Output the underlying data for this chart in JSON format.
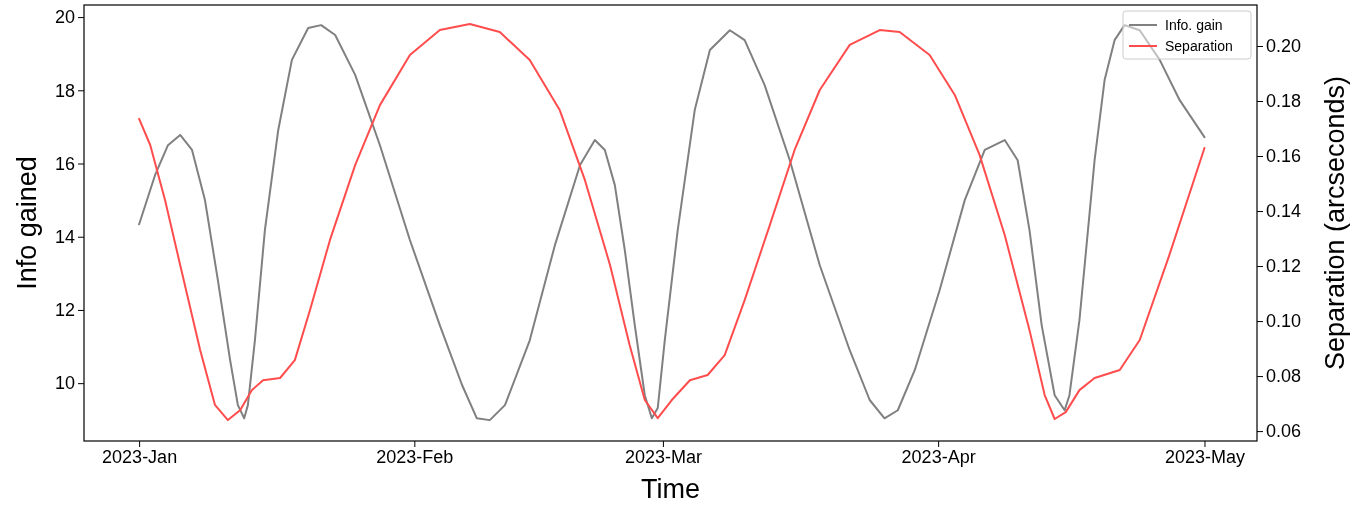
{
  "chart_data": {
    "type": "line",
    "xlabel": "Time",
    "ylabel": "Info gained",
    "y2label": "Separation (arcseconds)",
    "xlim": [
      "2022-12-25T19:00",
      "2023-05-06T22:00"
    ],
    "xticks": [
      {
        "value": "2023-01-01",
        "label": "2023-Jan"
      },
      {
        "value": "2023-02-01",
        "label": "2023-Feb"
      },
      {
        "value": "2023-03-01",
        "label": "2023-Mar"
      },
      {
        "value": "2023-04-01",
        "label": "2023-Apr"
      },
      {
        "value": "2023-05-01",
        "label": "2023-May"
      }
    ],
    "ylim": [
      8.42,
      20.33
    ],
    "yticks": [
      10,
      12,
      14,
      16,
      18,
      20
    ],
    "y2lim": [
      0.0564,
      0.2149
    ],
    "y2ticks": [
      0.06,
      0.08,
      {
        "value": 0.1,
        "label": "0.10"
      },
      0.12,
      0.14,
      0.16,
      0.18,
      {
        "value": 0.2,
        "label": "0.20"
      }
    ],
    "legend": "top right",
    "grid": false,
    "line_style": "solid",
    "series": [
      {
        "name": "Info. gain",
        "color": "#808080",
        "x": [
          "2023-01-01T00:00",
          "2023-01-02T19:00",
          "2023-01-04T06:00",
          "2023-01-05T15:00",
          "2023-01-06T23:00",
          "2023-01-08T10:00",
          "2023-01-09T21:00",
          "2023-01-11T06:00",
          "2023-01-12T03:00",
          "2023-01-12T20:00",
          "2023-01-13T06:00",
          "2023-01-14T01:00",
          "2023-01-15T04:00",
          "2023-01-16T16:00",
          "2023-01-18T05:00",
          "2023-01-20T01:00",
          "2023-01-21T12:00",
          "2023-01-23T02:00",
          "2023-01-25T08:00",
          "2023-01-28T03:00",
          "2023-01-31T12:00",
          "2023-02-03T21:00",
          "2023-02-06T09:00",
          "2023-02-08T01:00",
          "2023-02-09T12:00",
          "2023-02-11T05:00",
          "2023-02-14T00:00",
          "2023-02-16T20:00",
          "2023-02-19T16:00",
          "2023-02-21T08:00",
          "2023-02-22T11:00",
          "2023-02-23T14:00",
          "2023-02-24T17:00",
          "2023-02-25T20:00",
          "2023-02-26T23:00",
          "2023-02-27T18:00",
          "2023-02-28T10:00",
          "2023-03-01T05:00",
          "2023-03-02T16:00",
          "2023-03-04T14:00",
          "2023-03-06T07:00",
          "2023-03-08T13:00",
          "2023-03-10T05:00",
          "2023-03-12T11:00",
          "2023-03-15T07:00",
          "2023-03-18T16:00",
          "2023-03-22T01:00",
          "2023-03-24T07:00",
          "2023-03-25T23:00",
          "2023-03-27T11:00",
          "2023-03-29T09:00",
          "2023-04-01T04:00",
          "2023-04-04T00:00",
          "2023-04-06T06:00",
          "2023-04-08T12:00",
          "2023-04-09T23:00",
          "2023-04-11T07:00",
          "2023-04-12T16:00",
          "2023-04-14T03:00",
          "2023-04-15T06:00",
          "2023-04-15T19:00",
          "2023-04-16T22:00",
          "2023-04-18T15:00",
          "2023-04-19T18:00",
          "2023-04-20T21:00",
          "2023-04-22T00:00",
          "2023-04-23T17:00",
          "2023-04-25T23:00",
          "2023-04-28T05:00",
          "2023-05-01T00:00"
        ],
        "values": [
          14.34,
          15.68,
          16.5,
          16.78,
          16.37,
          15.0,
          12.81,
          10.63,
          9.4,
          9.04,
          9.4,
          11.17,
          14.18,
          16.91,
          18.83,
          19.7,
          19.78,
          19.51,
          18.42,
          16.5,
          13.91,
          11.58,
          9.95,
          9.04,
          8.99,
          9.4,
          11.17,
          13.77,
          15.96,
          16.64,
          16.37,
          15.41,
          13.63,
          11.58,
          9.67,
          9.04,
          9.32,
          11.17,
          14.18,
          17.46,
          19.1,
          19.64,
          19.37,
          18.14,
          16.09,
          13.22,
          10.9,
          9.54,
          9.04,
          9.26,
          10.36,
          12.54,
          15.0,
          16.37,
          16.64,
          16.09,
          14.18,
          11.58,
          9.67,
          9.26,
          9.67,
          11.72,
          16.09,
          18.28,
          19.37,
          19.78,
          19.64,
          18.83,
          17.73,
          16.72
        ]
      },
      {
        "name": "Separation",
        "color": "#ff4d4d",
        "axis": "y2",
        "x": [
          "2023-01-01T00:00",
          "2023-01-02T06:00",
          "2023-01-03T22:00",
          "2023-01-05T15:00",
          "2023-01-07T21:00",
          "2023-01-09T13:00",
          "2023-01-11T00:00",
          "2023-01-12T09:00",
          "2023-01-13T17:00",
          "2023-01-14T23:00",
          "2023-01-16T21:00",
          "2023-01-18T13:00",
          "2023-01-20T06:00",
          "2023-01-22T12:00",
          "2023-01-25T08:00",
          "2023-01-28T03:00",
          "2023-01-31T12:00",
          "2023-02-03T21:00",
          "2023-02-07T06:00",
          "2023-02-10T15:00",
          "2023-02-14T00:00",
          "2023-02-17T09:00",
          "2023-02-20T05:00",
          "2023-02-23T01:00",
          "2023-02-25T06:00",
          "2023-02-26T23:00",
          "2023-02-28T10:00",
          "2023-03-02T00:00",
          "2023-03-04T01:00",
          "2023-03-06T01:00",
          "2023-03-07T23:00",
          "2023-03-10T05:00",
          "2023-03-13T01:00",
          "2023-03-15T20:00",
          "2023-03-18T16:00",
          "2023-03-22T01:00",
          "2023-03-25T10:00",
          "2023-03-27T16:00",
          "2023-03-31T01:00",
          "2023-04-02T21:00",
          "2023-04-05T16:00",
          "2023-04-08T12:00",
          "2023-04-11T07:00",
          "2023-04-13T00:00",
          "2023-04-14T03:00",
          "2023-04-15T09:00",
          "2023-04-16T22:00",
          "2023-04-18T15:00",
          "2023-04-21T11:00",
          "2023-04-23T17:00",
          "2023-04-27T01:00",
          "2023-05-01T00:00"
        ],
        "values": [
          0.1735,
          0.164,
          0.144,
          0.1204,
          0.0895,
          0.0695,
          0.064,
          0.0676,
          0.0749,
          0.0785,
          0.0793,
          0.0858,
          0.104,
          0.1295,
          0.1567,
          0.1785,
          0.1967,
          0.2058,
          0.208,
          0.2051,
          0.1949,
          0.1767,
          0.1513,
          0.1204,
          0.0913,
          0.0713,
          0.0647,
          0.0713,
          0.0785,
          0.0804,
          0.0876,
          0.1076,
          0.1349,
          0.1622,
          0.184,
          0.2004,
          0.2058,
          0.2051,
          0.1967,
          0.1822,
          0.1604,
          0.1313,
          0.0967,
          0.0731,
          0.0644,
          0.0669,
          0.0749,
          0.0793,
          0.0822,
          0.0931,
          0.124,
          0.1629
        ]
      }
    ]
  }
}
